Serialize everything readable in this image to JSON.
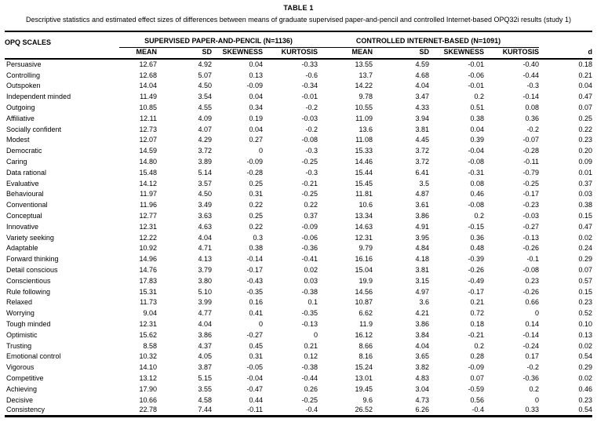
{
  "page": {
    "table_label": "TABLE 1",
    "subtitle": "Descriptive statistics and estimated effect sizes of differences between means of graduate supervised paper-and-pencil and controlled Internet-based OPQ32i results (study 1)"
  },
  "table": {
    "scale_header": "OPQ SCALES",
    "group1_header": "SUPERVISED PAPER-AND-PENCIL (N=1136)",
    "group2_header": "CONTROLLED INTERNET-BASED (N=1091)",
    "subheaders": [
      "MEAN",
      "SD",
      "SKEWNESS",
      "KURTOSIS"
    ],
    "d_header": "d",
    "rows": [
      [
        "Persuasive",
        "12.67",
        "4.92",
        "0.04",
        "-0.33",
        "13.55",
        "4.59",
        "-0.01",
        "-0.40",
        "0.18"
      ],
      [
        "Controlling",
        "12.68",
        "5.07",
        "0.13",
        "-0.6",
        "13.7",
        "4.68",
        "-0.06",
        "-0.44",
        "0.21"
      ],
      [
        "Outspoken",
        "14.04",
        "4.50",
        "-0.09",
        "-0.34",
        "14.22",
        "4.04",
        "-0.01",
        "-0.3",
        "0.04"
      ],
      [
        "Independent minded",
        "11.49",
        "3.54",
        "0.04",
        "-0.01",
        "9.78",
        "3.47",
        "0.2",
        "-0.14",
        "0.47"
      ],
      [
        "Outgoing",
        "10.85",
        "4.55",
        "0.34",
        "-0.2",
        "10.55",
        "4.33",
        "0.51",
        "0.08",
        "0.07"
      ],
      [
        "Affiliative",
        "12.11",
        "4.09",
        "0.19",
        "-0.03",
        "11.09",
        "3.94",
        "0.38",
        "0.36",
        "0.25"
      ],
      [
        "Socially confident",
        "12.73",
        "4.07",
        "0.04",
        "-0.2",
        "13.6",
        "3.81",
        "0.04",
        "-0.2",
        "0.22"
      ],
      [
        "Modest",
        "12.07",
        "4.29",
        "0.27",
        "-0.08",
        "11.08",
        "4.45",
        "0.39",
        "-0.07",
        "0.23"
      ],
      [
        "Democratic",
        "14.59",
        "3.72",
        "0",
        "-0.3",
        "15.33",
        "3.72",
        "-0.04",
        "-0.28",
        "0.20"
      ],
      [
        "Caring",
        "14.80",
        "3.89",
        "-0.09",
        "-0.25",
        "14.46",
        "3.72",
        "-0.08",
        "-0.11",
        "0.09"
      ],
      [
        "Data rational",
        "15.48",
        "5.14",
        "-0.28",
        "-0.3",
        "15.44",
        "6.41",
        "-0.31",
        "-0.79",
        "0.01"
      ],
      [
        "Evaluative",
        "14.12",
        "3.57",
        "0.25",
        "-0.21",
        "15.45",
        "3.5",
        "0.08",
        "-0.25",
        "0.37"
      ],
      [
        "Behavioural",
        "11.97",
        "4.50",
        "0.31",
        "-0.25",
        "11.81",
        "4.87",
        "0.46",
        "-0.17",
        "0.03"
      ],
      [
        "Conventional",
        "11.96",
        "3.49",
        "0.22",
        "0.22",
        "10.6",
        "3.61",
        "-0.08",
        "-0.23",
        "0.38"
      ],
      [
        "Conceptual",
        "12.77",
        "3.63",
        "0.25",
        "0.37",
        "13.34",
        "3.86",
        "0.2",
        "-0.03",
        "0.15"
      ],
      [
        "Innovative",
        "12.31",
        "4.63",
        "0.22",
        "-0.09",
        "14.63",
        "4.91",
        "-0.15",
        "-0.27",
        "0.47"
      ],
      [
        "Variety seeking",
        "12.22",
        "4.04",
        "0.3",
        "-0.06",
        "12.31",
        "3.95",
        "0.36",
        "-0.13",
        "0.02"
      ],
      [
        "Adaptable",
        "10.92",
        "4.71",
        "0.38",
        "-0.36",
        "9.79",
        "4.84",
        "0.48",
        "-0.26",
        "0.24"
      ],
      [
        "Forward thinking",
        "14.96",
        "4.13",
        "-0.14",
        "-0.41",
        "16.16",
        "4.18",
        "-0.39",
        "-0.1",
        "0.29"
      ],
      [
        "Detail conscious",
        "14.76",
        "3.79",
        "-0.17",
        "0.02",
        "15.04",
        "3.81",
        "-0.26",
        "-0.08",
        "0.07"
      ],
      [
        "Conscientious",
        "17.83",
        "3.80",
        "-0.43",
        "0.03",
        "19.9",
        "3.15",
        "-0.49",
        "0.23",
        "0.57"
      ],
      [
        "Rule following",
        "15.31",
        "5.10",
        "-0.35",
        "-0.38",
        "14.56",
        "4.97",
        "-0.17",
        "-0.26",
        "0.15"
      ],
      [
        "Relaxed",
        "11.73",
        "3.99",
        "0.16",
        "0.1",
        "10.87",
        "3.6",
        "0.21",
        "0.66",
        "0.23"
      ],
      [
        "Worrying",
        "9.04",
        "4.77",
        "0.41",
        "-0.35",
        "6.62",
        "4.21",
        "0.72",
        "0",
        "0.52"
      ],
      [
        "Tough minded",
        "12.31",
        "4.04",
        "0",
        "-0.13",
        "11.9",
        "3.86",
        "0.18",
        "0.14",
        "0.10"
      ],
      [
        "Optimistic",
        "15.62",
        "3.86",
        "-0.27",
        "0",
        "16.12",
        "3.84",
        "-0.21",
        "-0.14",
        "0.13"
      ],
      [
        "Trusting",
        "8.58",
        "4.37",
        "0.45",
        "0.21",
        "8.66",
        "4.04",
        "0.2",
        "-0.24",
        "0.02"
      ],
      [
        "Emotional control",
        "10.32",
        "4.05",
        "0.31",
        "0.12",
        "8.16",
        "3.65",
        "0.28",
        "0.17",
        "0.54"
      ],
      [
        "Vigorous",
        "14.10",
        "3.87",
        "-0.05",
        "-0.38",
        "15.24",
        "3.82",
        "-0.09",
        "-0.2",
        "0.29"
      ],
      [
        "Competitive",
        "13.12",
        "5.15",
        "-0.04",
        "-0.44",
        "13.01",
        "4.83",
        "0.07",
        "-0.36",
        "0.02"
      ],
      [
        "Achieving",
        "17.90",
        "3.55",
        "-0.47",
        "0.26",
        "19.45",
        "3.04",
        "-0.59",
        "0.2",
        "0.46"
      ],
      [
        "Decisive",
        "10.66",
        "4.58",
        "0.44",
        "-0.25",
        "9.6",
        "4.73",
        "0.56",
        "0",
        "0.23"
      ],
      [
        "Consistency",
        "22.78",
        "7.44",
        "-0.11",
        "-0.4",
        "26.52",
        "6.26",
        "-0.4",
        "0.33",
        "0.54"
      ]
    ]
  }
}
